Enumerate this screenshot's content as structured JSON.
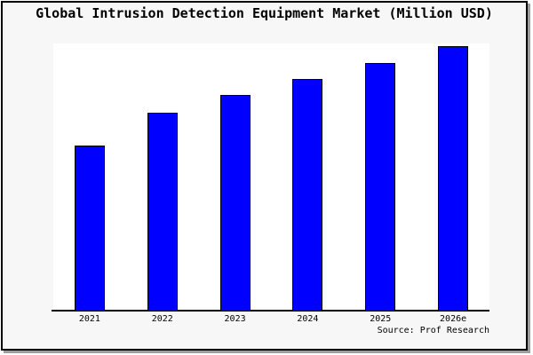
{
  "figure": {
    "title": "Global Intrusion Detection Equipment Market (Million USD)",
    "source": "Source: Prof Research"
  },
  "colors": {
    "bar_fill": "#0000ff",
    "bar_border": "#000000",
    "figure_background": "#f7f7f7",
    "plot_background": "#ffffff",
    "axis_line": "#000000",
    "text": "#000000",
    "frame_border": "#000000",
    "frame_shadow": "#9e9e9e"
  },
  "chart_data": {
    "type": "bar",
    "title": "Global Intrusion Detection Equipment Market (Million USD)",
    "categories": [
      "2021",
      "2022",
      "2023",
      "2024",
      "2025",
      "2026e"
    ],
    "values": [
      62.5,
      74.8,
      81.4,
      87.5,
      93.4,
      99.7
    ],
    "unit": "relative bar height, % of plot area (no y-axis scale or value labels shown in chart)",
    "xlabel": "",
    "ylabel": "",
    "ylim": [
      0,
      100
    ],
    "grid": false,
    "legend": false,
    "bar_color": "#0000ff",
    "source": "Source: Prof Research"
  }
}
